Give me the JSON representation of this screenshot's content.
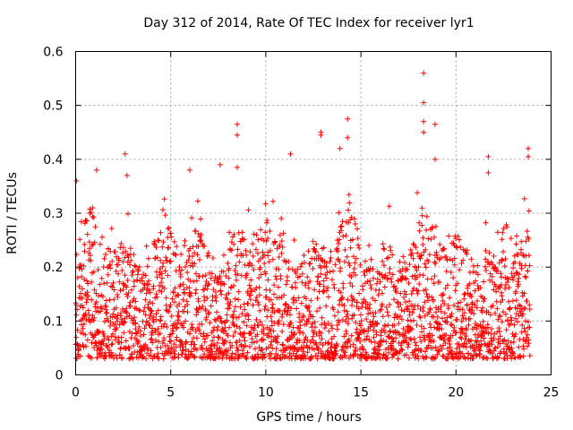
{
  "chart_data": {
    "type": "scatter",
    "title": "Day 312 of 2014, Rate Of TEC Index for receiver lyr1",
    "xlabel": "GPS time / hours",
    "ylabel": "ROTI / TECUs",
    "xlim": [
      0,
      25
    ],
    "ylim": [
      0,
      0.6
    ],
    "x_ticks": [
      0,
      5,
      10,
      15,
      20,
      25
    ],
    "x_tick_labels": [
      "0",
      "5",
      "10",
      "15",
      "20",
      "25"
    ],
    "y_ticks": [
      0,
      0.1,
      0.2,
      0.3,
      0.4,
      0.5,
      0.6
    ],
    "y_tick_labels": [
      "0",
      "0.1",
      "0.2",
      "0.3",
      "0.4",
      "0.5",
      "0.6"
    ],
    "grid": true,
    "marker": "+",
    "color": "#ff0000",
    "series": [
      {
        "name": "ROTI",
        "x_range": [
          0,
          23.9
        ],
        "points": [
          [
            0.05,
            0.36
          ],
          [
            0.9,
            0.31
          ],
          [
            1.1,
            0.38
          ],
          [
            2.6,
            0.41
          ],
          [
            2.7,
            0.37
          ],
          [
            6.0,
            0.38
          ],
          [
            7.6,
            0.39
          ],
          [
            8.5,
            0.465
          ],
          [
            8.5,
            0.445
          ],
          [
            8.5,
            0.385
          ],
          [
            11.3,
            0.41
          ],
          [
            12.9,
            0.45
          ],
          [
            12.9,
            0.445
          ],
          [
            13.9,
            0.42
          ],
          [
            14.3,
            0.475
          ],
          [
            14.3,
            0.44
          ],
          [
            18.3,
            0.56
          ],
          [
            18.3,
            0.505
          ],
          [
            18.3,
            0.47
          ],
          [
            18.3,
            0.45
          ],
          [
            18.9,
            0.465
          ],
          [
            18.9,
            0.4
          ],
          [
            21.7,
            0.405
          ],
          [
            21.7,
            0.375
          ],
          [
            23.8,
            0.42
          ],
          [
            23.8,
            0.405
          ]
        ]
      }
    ]
  }
}
